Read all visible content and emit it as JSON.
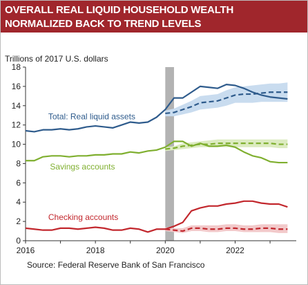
{
  "title": {
    "line1": "OVERALL REAL LIQUID HOUSEHOLD WEALTH",
    "line2": "NORMALIZED BACK TO TREND LEVELS"
  },
  "source": "Source: Federal Reserve Bank of San Francisco",
  "colors": {
    "banner": "#a0262c",
    "total": "#2e5b8c",
    "savings": "#7faf2f",
    "checking": "#c2272d",
    "total_band": "#c9dcef",
    "savings_band": "#dcebc0",
    "checking_band": "#f2c9ca",
    "recession": "#b3b3b3"
  },
  "chart_data": {
    "type": "line",
    "ylabel": "Trillions of 2017 U.S. dollars",
    "ylim": [
      0,
      18
    ],
    "yticks": [
      "0",
      "2",
      "4",
      "6",
      "8",
      "10",
      "12",
      "14",
      "16",
      "18"
    ],
    "xlim": [
      2016,
      2023.75
    ],
    "xticks": [
      "2016",
      "2018",
      "2020",
      "2022"
    ],
    "recession_shade": [
      2020.0,
      2020.25
    ],
    "grid": false,
    "series": [
      {
        "name": "Total: Real liquid assets",
        "style": "solid",
        "x": [
          2016,
          2016.25,
          2016.5,
          2016.75,
          2017,
          2017.25,
          2017.5,
          2017.75,
          2018,
          2018.25,
          2018.5,
          2018.75,
          2019,
          2019.25,
          2019.5,
          2019.75,
          2020,
          2020.25,
          2020.5,
          2020.75,
          2021,
          2021.25,
          2021.5,
          2021.75,
          2022,
          2022.25,
          2022.5,
          2022.75,
          2023,
          2023.25,
          2023.5
        ],
        "y": [
          11.4,
          11.3,
          11.5,
          11.5,
          11.6,
          11.5,
          11.6,
          11.8,
          11.9,
          11.8,
          11.7,
          12.0,
          12.3,
          12.2,
          12.3,
          12.8,
          13.6,
          14.8,
          14.8,
          15.4,
          16.0,
          15.9,
          15.8,
          16.2,
          16.1,
          15.8,
          15.4,
          15.1,
          14.9,
          14.8,
          14.7
        ]
      },
      {
        "name": "",
        "style": "dashed",
        "x": [
          2020,
          2020.25,
          2020.5,
          2020.75,
          2021,
          2021.25,
          2021.5,
          2021.75,
          2022,
          2022.25,
          2022.5,
          2022.75,
          2023,
          2023.25,
          2023.5
        ],
        "y": [
          13.2,
          13.3,
          13.6,
          13.9,
          14.3,
          14.4,
          14.5,
          14.8,
          15.1,
          15.2,
          15.2,
          15.3,
          15.4,
          15.4,
          15.4
        ],
        "band_low": [
          12.9,
          12.9,
          13.1,
          13.3,
          13.6,
          13.7,
          13.8,
          14.0,
          14.3,
          14.3,
          14.3,
          14.4,
          14.4,
          14.4,
          14.4
        ],
        "band_high": [
          13.5,
          13.7,
          14.1,
          14.5,
          15.0,
          15.1,
          15.2,
          15.6,
          15.9,
          16.0,
          16.1,
          16.2,
          16.3,
          16.3,
          16.4
        ]
      },
      {
        "name": "Savings accounts",
        "style": "solid",
        "x": [
          2016,
          2016.25,
          2016.5,
          2016.75,
          2017,
          2017.25,
          2017.5,
          2017.75,
          2018,
          2018.25,
          2018.5,
          2018.75,
          2019,
          2019.25,
          2019.5,
          2019.75,
          2020,
          2020.25,
          2020.5,
          2020.75,
          2021,
          2021.25,
          2021.5,
          2021.75,
          2022,
          2022.25,
          2022.5,
          2022.75,
          2023,
          2023.25,
          2023.5
        ],
        "y": [
          8.3,
          8.3,
          8.7,
          8.8,
          8.8,
          8.7,
          8.8,
          8.8,
          8.9,
          8.9,
          9.0,
          9.0,
          9.2,
          9.1,
          9.3,
          9.4,
          9.7,
          10.3,
          10.3,
          9.8,
          10.1,
          9.8,
          9.8,
          9.9,
          9.7,
          9.2,
          8.8,
          8.6,
          8.2,
          8.1,
          8.1
        ]
      },
      {
        "name": "",
        "style": "dashed",
        "x": [
          2020,
          2020.25,
          2020.5,
          2020.75,
          2021,
          2021.25,
          2021.5,
          2021.75,
          2022,
          2022.25,
          2022.5,
          2022.75,
          2023,
          2023.25,
          2023.5
        ],
        "y": [
          9.5,
          9.6,
          9.8,
          9.9,
          10.0,
          10.0,
          10.1,
          10.1,
          10.1,
          10.1,
          10.1,
          10.1,
          10.1,
          10.0,
          10.0
        ],
        "band_low": [
          9.3,
          9.4,
          9.5,
          9.6,
          9.7,
          9.7,
          9.7,
          9.7,
          9.7,
          9.7,
          9.7,
          9.7,
          9.7,
          9.6,
          9.6
        ],
        "band_high": [
          9.7,
          9.8,
          10.1,
          10.2,
          10.3,
          10.4,
          10.5,
          10.5,
          10.5,
          10.5,
          10.5,
          10.5,
          10.5,
          10.5,
          10.5
        ]
      },
      {
        "name": "Checking accounts",
        "style": "solid",
        "x": [
          2016,
          2016.25,
          2016.5,
          2016.75,
          2017,
          2017.25,
          2017.5,
          2017.75,
          2018,
          2018.25,
          2018.5,
          2018.75,
          2019,
          2019.25,
          2019.5,
          2019.75,
          2020,
          2020.25,
          2020.5,
          2020.75,
          2021,
          2021.25,
          2021.5,
          2021.75,
          2022,
          2022.25,
          2022.5,
          2022.75,
          2023,
          2023.25,
          2023.5
        ],
        "y": [
          1.3,
          1.2,
          1.1,
          1.1,
          1.3,
          1.3,
          1.2,
          1.3,
          1.4,
          1.3,
          1.1,
          1.1,
          1.3,
          1.2,
          0.9,
          1.2,
          1.2,
          1.5,
          1.9,
          3.1,
          3.4,
          3.6,
          3.6,
          3.8,
          3.9,
          4.1,
          4.1,
          3.9,
          3.8,
          3.8,
          3.5
        ]
      },
      {
        "name": "",
        "style": "dashed",
        "x": [
          2020,
          2020.25,
          2020.5,
          2020.75,
          2021,
          2021.25,
          2021.5,
          2021.75,
          2022,
          2022.25,
          2022.5,
          2022.75,
          2023,
          2023.25,
          2023.5
        ],
        "y": [
          1.2,
          1.1,
          1.0,
          1.3,
          1.3,
          1.2,
          1.2,
          1.3,
          1.3,
          1.2,
          1.2,
          1.3,
          1.3,
          1.2,
          1.2
        ],
        "band_low": [
          1.0,
          0.9,
          0.8,
          1.0,
          1.0,
          0.9,
          0.9,
          1.0,
          1.0,
          0.9,
          0.9,
          0.9,
          0.9,
          0.8,
          0.8
        ],
        "band_high": [
          1.4,
          1.3,
          1.3,
          1.6,
          1.6,
          1.6,
          1.6,
          1.7,
          1.7,
          1.6,
          1.6,
          1.7,
          1.7,
          1.7,
          1.7
        ]
      }
    ]
  }
}
